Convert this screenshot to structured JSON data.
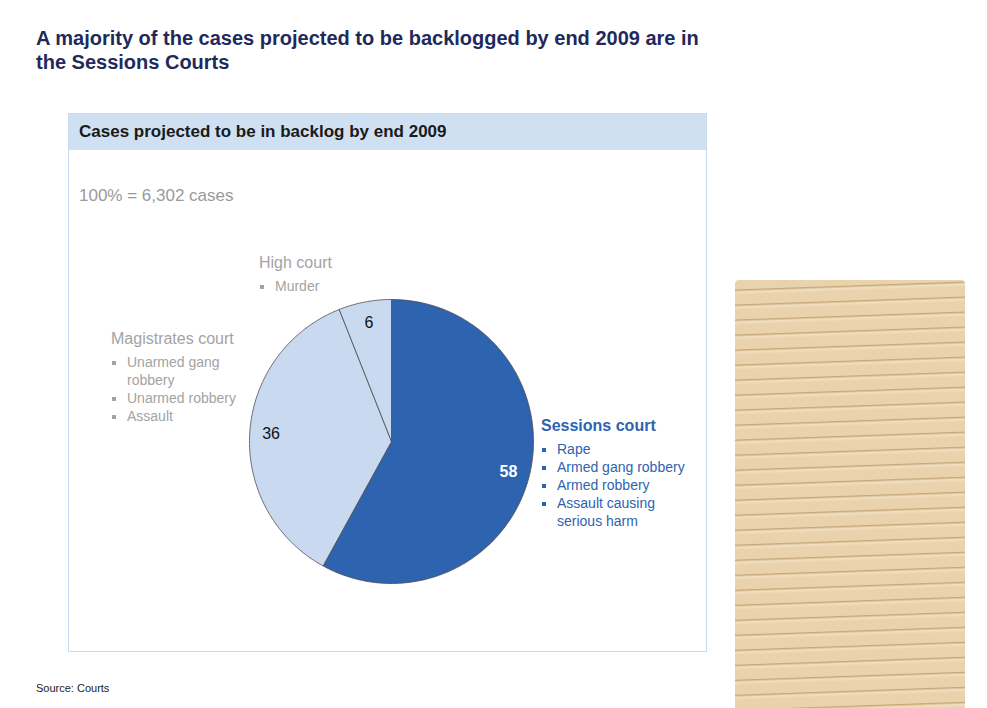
{
  "chart_data": {
    "type": "pie",
    "title": "A majority of the cases projected to be backlogged by end 2009 are in the Sessions Courts",
    "subtitle": "Cases projected to be in backlog by end 2009",
    "note": "100% = 6,302 cases",
    "source": "Source: Courts",
    "categories": [
      "Sessions court",
      "Magistrates court",
      "High court"
    ],
    "values": [
      58,
      36,
      6
    ],
    "colors": [
      "#2e63b0",
      "#c9daf0",
      "#c9daf0"
    ],
    "items": [
      [
        "Rape",
        "Armed gang robbery",
        "Armed robbery",
        "Assault causing serious harm"
      ],
      [
        "Unarmed gang robbery",
        "Unarmed robbery",
        "Assault"
      ],
      [
        "Murder"
      ]
    ],
    "data_labels": true
  }
}
